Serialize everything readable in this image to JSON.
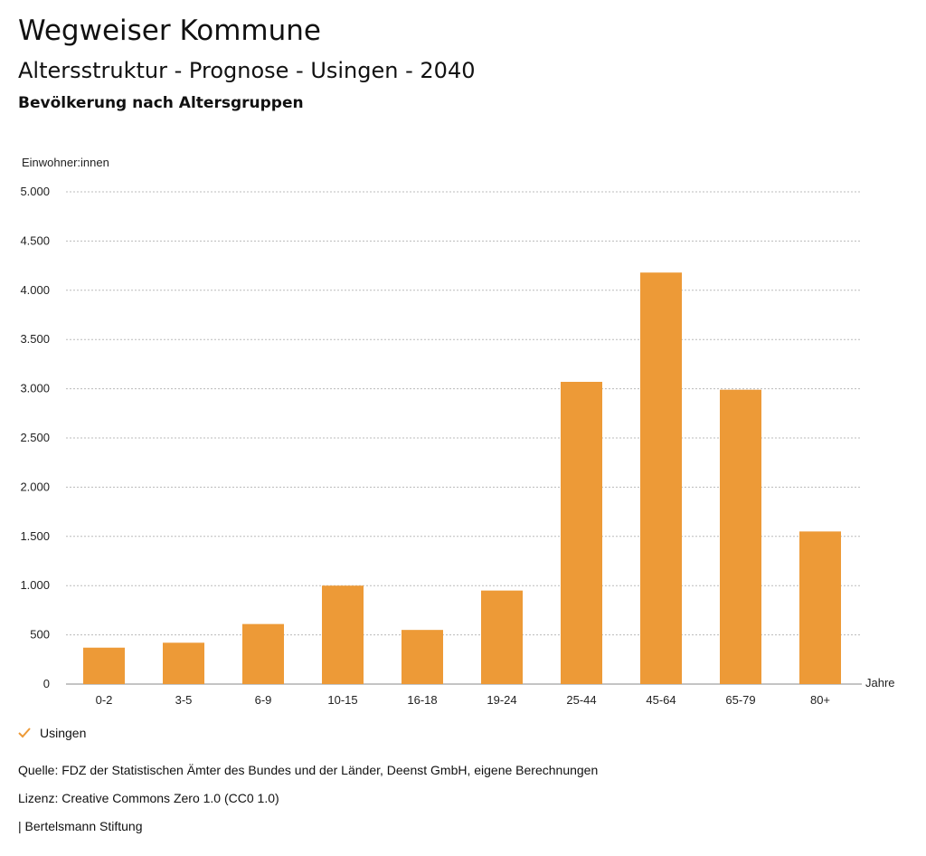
{
  "header": {
    "title": "Wegweiser Kommune",
    "subtitle": "Altersstruktur - Prognose - Usingen - 2040",
    "subsubtitle": "Bevölkerung nach Altersgruppen"
  },
  "legend": {
    "label": "Usingen",
    "icon": "check-icon",
    "color": "#ED9A37"
  },
  "footer": {
    "source": "Quelle: FDZ der Statistischen Ämter des Bundes und der Länder, Deenst GmbH, eigene Berechnungen",
    "license": "Lizenz: Creative Commons Zero 1.0 (CC0 1.0)",
    "publisher": "| Bertelsmann Stiftung"
  },
  "chart_data": {
    "type": "bar",
    "ylabel": "Einwohner:innen",
    "xlabel": "Jahre",
    "ylim": [
      0,
      5000
    ],
    "yticks": [
      0,
      500,
      1000,
      1500,
      2000,
      2500,
      3000,
      3500,
      4000,
      4500,
      5000
    ],
    "ytick_labels": [
      "0",
      "500",
      "1.000",
      "1.500",
      "2.000",
      "2.500",
      "3.000",
      "3.500",
      "4.000",
      "4.500",
      "5.000"
    ],
    "grid": true,
    "categories": [
      "0-2",
      "3-5",
      "6-9",
      "10-15",
      "16-18",
      "19-24",
      "25-44",
      "45-64",
      "65-79",
      "80+"
    ],
    "series": [
      {
        "name": "Usingen",
        "color": "#ED9A37",
        "values": [
          370,
          420,
          610,
          1000,
          550,
          950,
          3070,
          4180,
          2990,
          1550
        ]
      }
    ]
  }
}
